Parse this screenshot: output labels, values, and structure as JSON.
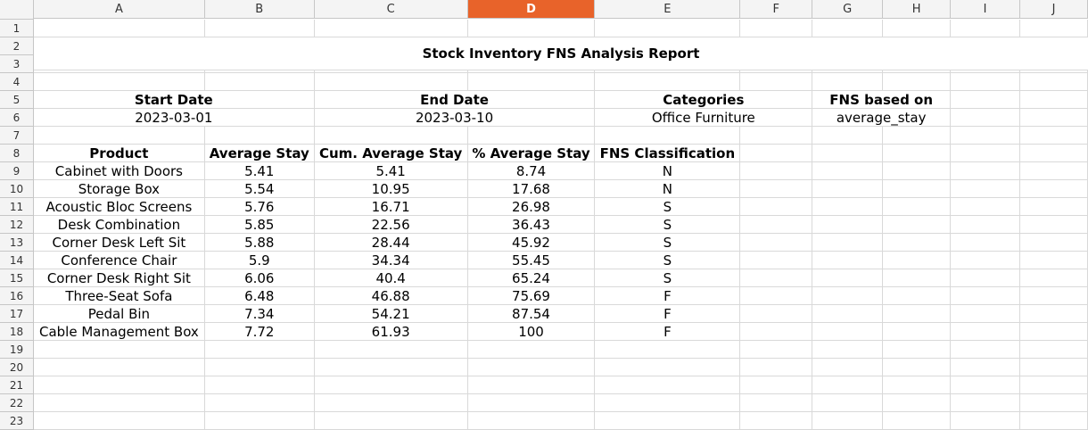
{
  "sheet": {
    "columns": [
      {
        "label": "A",
        "selected": false
      },
      {
        "label": "B",
        "selected": false
      },
      {
        "label": "C",
        "selected": false
      },
      {
        "label": "D",
        "selected": true
      },
      {
        "label": "E",
        "selected": false
      },
      {
        "label": "F",
        "selected": false
      },
      {
        "label": "G",
        "selected": false
      },
      {
        "label": "H",
        "selected": false
      },
      {
        "label": "I",
        "selected": false
      },
      {
        "label": "J",
        "selected": false
      }
    ],
    "selected_color": "#e8632a",
    "title": "Stock Inventory FNS Analysis Report",
    "params": {
      "start_label": "Start Date",
      "start_value": "2023-03-01",
      "end_label": "End Date",
      "end_value": "2023-03-10",
      "cat_label": "Categories",
      "cat_value": "Office Furniture",
      "fns_label": "FNS based on",
      "fns_value": "average_stay"
    },
    "table_headers": [
      "Product",
      "Average Stay",
      "Cum. Average Stay",
      "% Average Stay",
      "FNS Classification"
    ],
    "table_rows": [
      [
        "Cabinet with Doors",
        "5.41",
        "5.41",
        "8.74",
        "N"
      ],
      [
        "Storage Box",
        "5.54",
        "10.95",
        "17.68",
        "N"
      ],
      [
        "Acoustic Bloc Screens",
        "5.76",
        "16.71",
        "26.98",
        "S"
      ],
      [
        "Desk Combination",
        "5.85",
        "22.56",
        "36.43",
        "S"
      ],
      [
        "Corner Desk Left Sit",
        "5.88",
        "28.44",
        "45.92",
        "S"
      ],
      [
        "Conference Chair",
        "5.9",
        "34.34",
        "55.45",
        "S"
      ],
      [
        "Corner Desk Right Sit",
        "6.06",
        "40.4",
        "65.24",
        "S"
      ],
      [
        "Three-Seat Sofa",
        "6.48",
        "46.88",
        "75.69",
        "F"
      ],
      [
        "Pedal Bin",
        "7.34",
        "54.21",
        "87.54",
        "F"
      ],
      [
        "Cable Management Box",
        "7.72",
        "61.93",
        "100",
        "F"
      ]
    ],
    "row_numbers": [
      "1",
      "2",
      "3",
      "4",
      "5",
      "6",
      "7",
      "8",
      "9",
      "10",
      "11",
      "12",
      "13",
      "14",
      "15",
      "16",
      "17",
      "18",
      "19",
      "20",
      "21",
      "22",
      "23"
    ]
  }
}
